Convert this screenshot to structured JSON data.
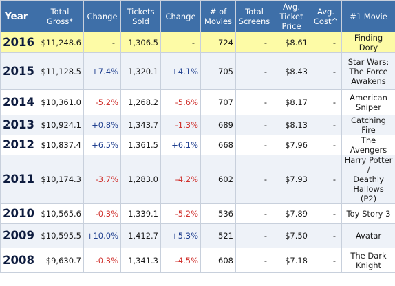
{
  "headers": {
    "year": "Year",
    "gross": [
      "Total",
      "Gross*"
    ],
    "change1": "Change",
    "tickets": [
      "Tickets",
      "Sold"
    ],
    "change2": "Change",
    "movies": [
      "# of",
      "Movies"
    ],
    "screens": [
      "Total",
      "Screens"
    ],
    "price": [
      "Avg.",
      "Ticket",
      "Price"
    ],
    "cost": [
      "Avg.",
      "Cost^"
    ],
    "top_movie": "#1 Movie"
  },
  "rows": [
    {
      "year": "2016",
      "gross": "$11,248.6",
      "change1": "-",
      "tickets": "1,306.5",
      "change2": "-",
      "movies": "724",
      "screens": "-",
      "price": "$8.61",
      "cost": "-",
      "movie": [
        "Finding Dory"
      ],
      "change1_sign": "none",
      "change2_sign": "none"
    },
    {
      "year": "2015",
      "gross": "$11,128.5",
      "change1": "+7.4%",
      "tickets": "1,320.1",
      "change2": "+4.1%",
      "movies": "705",
      "screens": "-",
      "price": "$8.43",
      "cost": "-",
      "movie": [
        "Star Wars:",
        "The Force",
        "Awakens"
      ],
      "change1_sign": "pos",
      "change2_sign": "pos"
    },
    {
      "year": "2014",
      "gross": "$10,361.0",
      "change1": "-5.2%",
      "tickets": "1,268.2",
      "change2": "-5.6%",
      "movies": "707",
      "screens": "-",
      "price": "$8.17",
      "cost": "-",
      "movie": [
        "American",
        "Sniper"
      ],
      "change1_sign": "neg",
      "change2_sign": "neg"
    },
    {
      "year": "2013",
      "gross": "$10,924.1",
      "change1": "+0.8%",
      "tickets": "1,343.7",
      "change2": "-1.3%",
      "movies": "689",
      "screens": "-",
      "price": "$8.13",
      "cost": "-",
      "movie": [
        "Catching Fire"
      ],
      "change1_sign": "pos",
      "change2_sign": "neg"
    },
    {
      "year": "2012",
      "gross": "$10,837.4",
      "change1": "+6.5%",
      "tickets": "1,361.5",
      "change2": "+6.1%",
      "movies": "668",
      "screens": "-",
      "price": "$7.96",
      "cost": "-",
      "movie": [
        "The Avengers"
      ],
      "change1_sign": "pos",
      "change2_sign": "pos"
    },
    {
      "year": "2011",
      "gross": "$10,174.3",
      "change1": "-3.7%",
      "tickets": "1,283.0",
      "change2": "-4.2%",
      "movies": "602",
      "screens": "-",
      "price": "$7.93",
      "cost": "-",
      "movie": [
        "Harry Potter /",
        "Deathly",
        "Hallows (P2)"
      ],
      "change1_sign": "neg",
      "change2_sign": "neg"
    },
    {
      "year": "2010",
      "gross": "$10,565.6",
      "change1": "-0.3%",
      "tickets": "1,339.1",
      "change2": "-5.2%",
      "movies": "536",
      "screens": "-",
      "price": "$7.89",
      "cost": "-",
      "movie": [
        "Toy Story 3"
      ],
      "change1_sign": "neg",
      "change2_sign": "neg"
    },
    {
      "year": "2009",
      "gross": "$10,595.5",
      "change1": "+10.0%",
      "tickets": "1,412.7",
      "change2": "+5.3%",
      "movies": "521",
      "screens": "-",
      "price": "$7.50",
      "cost": "-",
      "movie": [
        "Avatar"
      ],
      "change1_sign": "pos",
      "change2_sign": "pos"
    },
    {
      "year": "2008",
      "gross": "$9,630.7",
      "change1": "-0.3%",
      "tickets": "1,341.3",
      "change2": "-4.5%",
      "movies": "608",
      "screens": "-",
      "price": "$7.18",
      "cost": "-",
      "movie": [
        "The Dark",
        "Knight"
      ],
      "change1_sign": "neg",
      "change2_sign": "neg"
    }
  ],
  "colors": {
    "header_bg": "#3e6fa8",
    "highlight_row": "#fdfba6",
    "alt_row": "#eef2f8",
    "negative": "#d0312d",
    "positive": "#1f3f8f"
  }
}
